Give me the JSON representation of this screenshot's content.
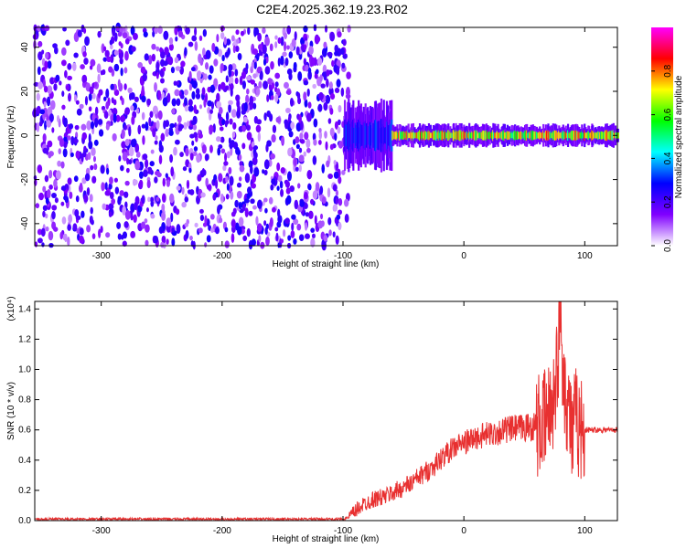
{
  "title": "C2E4.2025.362.19.23.R02",
  "chart_data": [
    {
      "type": "heatmap",
      "xlabel": "Height of straight line (km)",
      "ylabel": "Frequency (Hz)",
      "xlim": [
        -355,
        127
      ],
      "ylim": [
        -50,
        49
      ],
      "xticks": [
        -300,
        -200,
        -100,
        0,
        100
      ],
      "yticks": [
        -40,
        -20,
        0,
        20,
        40
      ],
      "colorbar": {
        "label": "Normalized spectral amplitude",
        "range": [
          0,
          1
        ],
        "ticks": [
          "0.0",
          "0.2",
          "0.4",
          "0.6",
          "0.8"
        ],
        "colors": [
          "#ffffff",
          "#8000ff",
          "#0000ff",
          "#00ffff",
          "#00ff00",
          "#ffff00",
          "#ff0000",
          "#ff00ff"
        ]
      },
      "regions": [
        {
          "x": [
            -355,
            -95
          ],
          "pattern": "noise",
          "amplitude": 0.1
        },
        {
          "x": [
            -100,
            -60
          ],
          "pattern": "wide-signal",
          "halfwidth_hz": 12,
          "amplitude": 0.35
        },
        {
          "x": [
            -60,
            127
          ],
          "pattern": "narrow-signal",
          "halfwidth_hz": 4,
          "amplitude": 0.85
        }
      ]
    },
    {
      "type": "line",
      "xlabel": "Height of straight line (km)",
      "ylabel": "SNR (10 * v/v)",
      "y_multiplier": "(x10⁴)",
      "xlim": [
        -355,
        127
      ],
      "ylim": [
        0,
        1.45
      ],
      "xticks": [
        -300,
        -200,
        -100,
        0,
        100
      ],
      "yticks": [
        0.0,
        0.2,
        0.4,
        0.6,
        0.8,
        1.0,
        1.2,
        1.4
      ],
      "series": [
        {
          "color": "#e83030",
          "x": [
            -355,
            -300,
            -200,
            -100,
            -95,
            -85,
            -75,
            -65,
            -55,
            -45,
            -35,
            -25,
            -15,
            -5,
            5,
            15,
            25,
            35,
            45,
            55,
            65,
            70,
            75,
            78,
            80,
            82,
            85,
            88,
            90,
            92,
            95,
            100,
            110,
            127
          ],
          "y": [
            0.01,
            0.01,
            0.01,
            0.01,
            0.02,
            0.1,
            0.14,
            0.16,
            0.2,
            0.24,
            0.3,
            0.36,
            0.44,
            0.5,
            0.53,
            0.56,
            0.58,
            0.6,
            0.61,
            0.62,
            0.63,
            0.7,
            0.85,
            1.1,
            1.45,
            1.0,
            0.8,
            0.7,
            0.5,
            0.7,
            0.62,
            0.6,
            0.6,
            0.6
          ]
        }
      ]
    }
  ]
}
